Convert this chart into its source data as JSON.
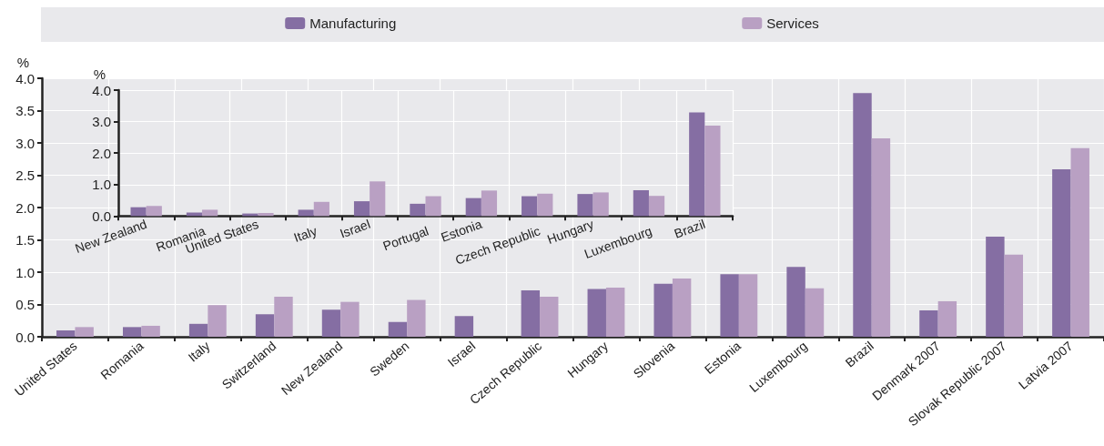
{
  "chart_data": [
    {
      "type": "bar",
      "ylabel": "%",
      "categories": [
        "United States",
        "Romania",
        "Italy",
        "Switzerland",
        "New Zealand",
        "Sweden",
        "Israel",
        "Czech Republic",
        "Hungary",
        "Slovenia",
        "Estonia",
        "Luxembourg",
        "Brazil",
        "Denmark 2007",
        "Slovak Republic 2007",
        "Latvia 2007"
      ],
      "series": [
        {
          "name": "Manufacturing",
          "color": "#856ea3",
          "values": [
            0.1,
            0.15,
            0.2,
            0.35,
            0.42,
            0.23,
            0.32,
            0.72,
            0.74,
            0.82,
            0.97,
            1.08,
            3.77,
            0.41,
            1.55,
            2.59
          ]
        },
        {
          "name": "Services",
          "color": "#b9a0c3",
          "values": [
            0.15,
            0.17,
            0.49,
            0.62,
            0.54,
            0.57,
            null,
            0.62,
            0.76,
            0.9,
            0.97,
            0.75,
            3.07,
            0.55,
            1.27,
            2.92
          ]
        }
      ],
      "ylim": [
        0,
        4
      ],
      "yticks": [
        {
          "value": 0,
          "label": "0.0"
        },
        {
          "value": 0.5,
          "label": "0.5"
        },
        {
          "value": 1,
          "label": "1.0"
        },
        {
          "value": 1.5,
          "label": "1.5"
        },
        {
          "value": 2,
          "label": "2.0"
        },
        {
          "value": 2.5,
          "label": "2.5"
        },
        {
          "value": 3,
          "label": "3.0"
        },
        {
          "value": 3.5,
          "label": "3.5"
        },
        {
          "value": 4,
          "label": "4.0"
        }
      ],
      "grid": true,
      "legend": "top"
    },
    {
      "type": "bar",
      "ylabel": "%",
      "categories": [
        "New Zealand",
        "Romania",
        "United States",
        "Italy",
        "Israel",
        "Portugal",
        "Estonia",
        "Czech Republic",
        "Hungary",
        "Luxembourg",
        "Brazil"
      ],
      "series": [
        {
          "color": "#856ea3",
          "values": [
            0.28,
            0.11,
            0.08,
            0.2,
            0.47,
            0.39,
            0.57,
            0.63,
            0.7,
            0.82,
            3.29
          ]
        },
        {
          "color": "#b9a0c3",
          "values": [
            0.32,
            0.2,
            0.1,
            0.45,
            1.1,
            0.63,
            0.81,
            0.71,
            0.75,
            0.64,
            2.87
          ]
        }
      ],
      "ylim": [
        0,
        4
      ],
      "yticks": [
        {
          "value": 0,
          "label": "0.0"
        },
        {
          "value": 1,
          "label": "1.0"
        },
        {
          "value": 2,
          "label": "2.0"
        },
        {
          "value": 3,
          "label": "3.0"
        },
        {
          "value": 4,
          "label": "4.0"
        }
      ],
      "grid": true,
      "legend": false
    }
  ]
}
